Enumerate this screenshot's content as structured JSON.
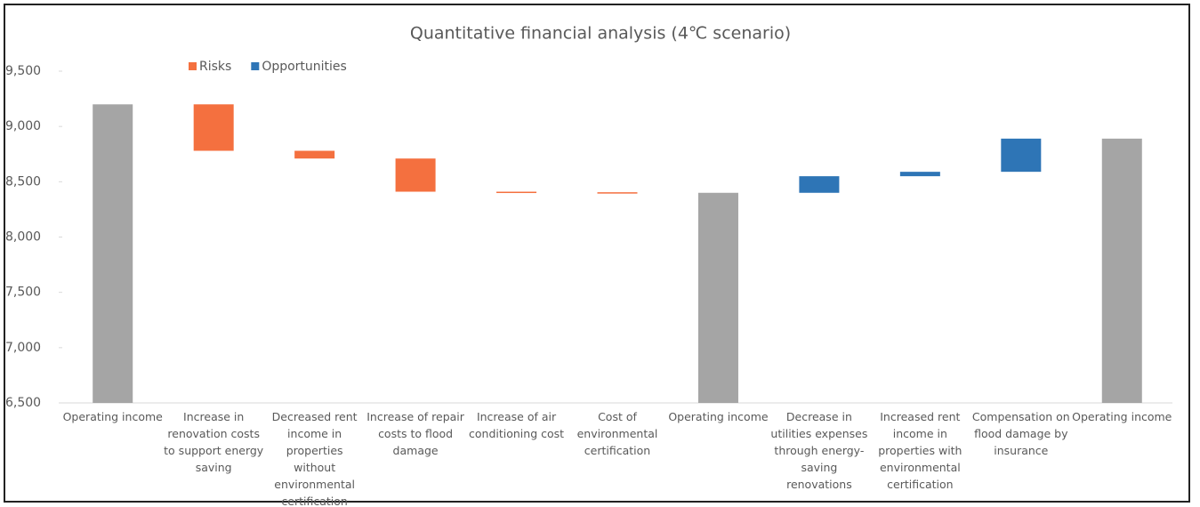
{
  "chart_data": {
    "type": "waterfall",
    "title": "Quantitative financial analysis (4℃ scenario)",
    "categories": [
      "Operating income",
      "Increase in renovation costs to support energy saving",
      "Decreased rent income in properties without environmental certification",
      "Increase of repair costs to flood damage",
      "Increase of air conditioning cost",
      "Cost of environmental certification",
      "Operating income",
      "Decrease in utilities expenses through energy-saving renovations",
      "Increased rent income in properties with environmental certification",
      "Compensation on flood damage  by insurance",
      "Operating income"
    ],
    "totals": {
      "color": "#a5a5a5",
      "values": [
        9200,
        null,
        null,
        null,
        null,
        null,
        8400,
        null,
        null,
        null,
        8890
      ]
    },
    "series": [
      {
        "name": "Risks",
        "color": "#f4703f",
        "values": [
          null,
          -420,
          -70,
          -300,
          -5,
          -5,
          null,
          null,
          null,
          null,
          null
        ]
      },
      {
        "name": "Opportunities",
        "color": "#2e75b6",
        "values": [
          null,
          null,
          null,
          null,
          null,
          null,
          null,
          150,
          40,
          300,
          null
        ]
      }
    ],
    "ylim": [
      6500,
      9500
    ],
    "yticks": [
      {
        "value": 6500,
        "label": "6,500"
      },
      {
        "value": 7000,
        "label": "7,000"
      },
      {
        "value": 7500,
        "label": "7,500"
      },
      {
        "value": 8000,
        "label": "8,000"
      },
      {
        "value": 8500,
        "label": "8,500"
      },
      {
        "value": 9000,
        "label": "9,000"
      },
      {
        "value": 9500,
        "label": "9,500"
      }
    ],
    "legend": "top-left"
  }
}
